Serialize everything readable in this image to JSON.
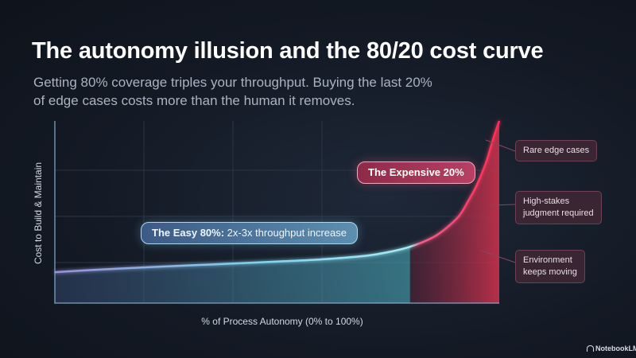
{
  "title": "The autonomy illusion and the 80/20 cost curve",
  "subtitle_lines": [
    "Getting 80% coverage triples your throughput. Buying the last 20%",
    "of edge cases costs more than the human it removes."
  ],
  "chart_data": {
    "type": "area",
    "xlabel": "% of Process Autonomy (0% to 100%)",
    "ylabel": "Cost to Build & Maintain",
    "xlim": [
      0,
      100
    ],
    "ylim": [
      0,
      100
    ],
    "grid": true,
    "x": [
      0,
      10,
      20,
      30,
      40,
      50,
      60,
      70,
      75,
      80,
      85,
      88,
      91,
      93,
      95,
      97,
      98,
      99,
      100
    ],
    "y": [
      17,
      18.4,
      19.6,
      20.7,
      21.7,
      22.8,
      24.0,
      26.0,
      28.0,
      31.0,
      36.0,
      41.0,
      48.0,
      56.0,
      65.0,
      77.0,
      85.0,
      93.0,
      100.0
    ],
    "split_x": 80,
    "regions": [
      {
        "label_bold": "The Easy 80%:",
        "label_rest": " 2x-3x throughput increase",
        "range": [
          0,
          80
        ],
        "color": "#8fe0f0"
      },
      {
        "label": "The Expensive 20%",
        "range": [
          80,
          100
        ],
        "color": "#e8435f"
      }
    ],
    "annotations": [
      "Rare edge cases",
      "High-stakes\njudgment required",
      "Environment\nkeeps moving"
    ]
  },
  "branding": "NotebookLM",
  "colors": {
    "easy": "#8fe0f0",
    "expensive": "#e8435f",
    "background": "#141a25"
  }
}
